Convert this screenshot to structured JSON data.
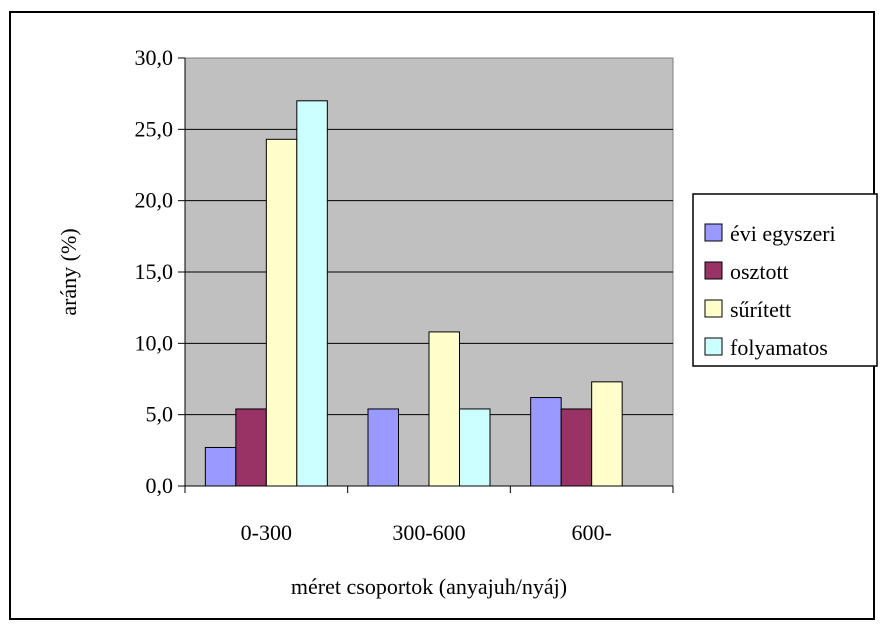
{
  "chart_data": {
    "type": "bar",
    "title": "",
    "xlabel": "méret csoportok (anyajuh/nyáj)",
    "ylabel": "arány (%)",
    "categories": [
      "0-300",
      "300-600",
      "600-"
    ],
    "ylim": [
      0,
      30
    ],
    "yticks": [
      "0,0",
      "5,0",
      "10,0",
      "15,0",
      "20,0",
      "25,0",
      "30,0"
    ],
    "grid": true,
    "legend_position": "right",
    "plot_background": "#c0c0c0",
    "series": [
      {
        "name": "évi egyszeri",
        "color": "#9999ff",
        "values": [
          2.7,
          5.4,
          6.2
        ]
      },
      {
        "name": "osztott",
        "color": "#993366",
        "values": [
          5.4,
          0,
          5.4
        ]
      },
      {
        "name": "sűrített",
        "color": "#ffffcc",
        "values": [
          24.3,
          10.8,
          7.3
        ]
      },
      {
        "name": "folyamatos",
        "color": "#ccffff",
        "values": [
          27.0,
          5.4,
          0
        ]
      }
    ]
  }
}
